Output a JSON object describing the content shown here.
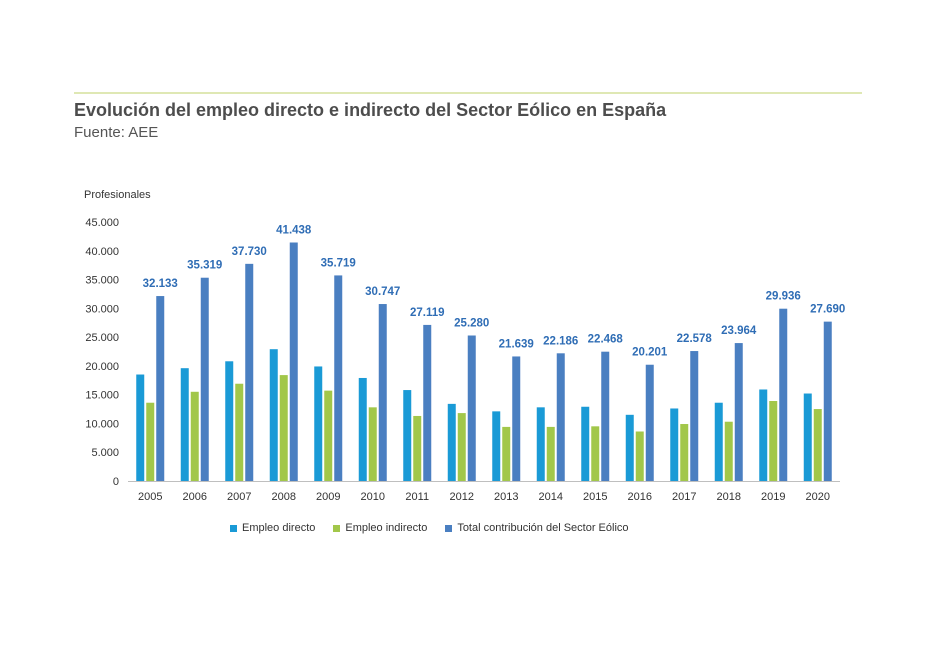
{
  "title": "Evolución del empleo directo e indirecto del Sector Eólico en España",
  "subtitle": "Fuente: AEE",
  "chart_data": {
    "type": "bar",
    "ylabel": "Profesionales",
    "xlabel": "",
    "ylim": [
      0,
      45000
    ],
    "yticks": [
      "0",
      "5.000",
      "10.000",
      "15.000",
      "20.000",
      "25.000",
      "30.000",
      "35.000",
      "40.000",
      "45.000"
    ],
    "categories": [
      "2005",
      "2006",
      "2007",
      "2008",
      "2009",
      "2010",
      "2011",
      "2012",
      "2013",
      "2014",
      "2015",
      "2016",
      "2017",
      "2018",
      "2019",
      "2020"
    ],
    "series": [
      {
        "name": "Empleo directo",
        "color": "#1a9ad6",
        "values": [
          18500,
          19600,
          20800,
          22900,
          19900,
          17900,
          15800,
          13400,
          12100,
          12800,
          12900,
          11500,
          12600,
          13600,
          15900,
          15200
        ]
      },
      {
        "name": "Empleo indirecto",
        "color": "#a2c74a",
        "values": [
          13600,
          15500,
          16900,
          18400,
          15700,
          12800,
          11300,
          11800,
          9400,
          9400,
          9500,
          8600,
          9900,
          10300,
          13900,
          12500
        ]
      },
      {
        "name": "Total contribución del Sector Eólico",
        "color": "#4a7fc1",
        "values": [
          32133,
          35319,
          37730,
          41438,
          35719,
          30747,
          27119,
          25280,
          21639,
          22186,
          22468,
          20201,
          22578,
          23964,
          29936,
          27690
        ]
      }
    ],
    "total_labels": [
      "32.133",
      "35.319",
      "37.730",
      "41.438",
      "35.719",
      "30.747",
      "27.119",
      "25.280",
      "21.639",
      "22.186",
      "22.468",
      "20.201",
      "22.578",
      "23.964",
      "29.936",
      "27.690"
    ],
    "label_color": "#2f6db5",
    "grid": false,
    "legend_position": "bottom"
  }
}
